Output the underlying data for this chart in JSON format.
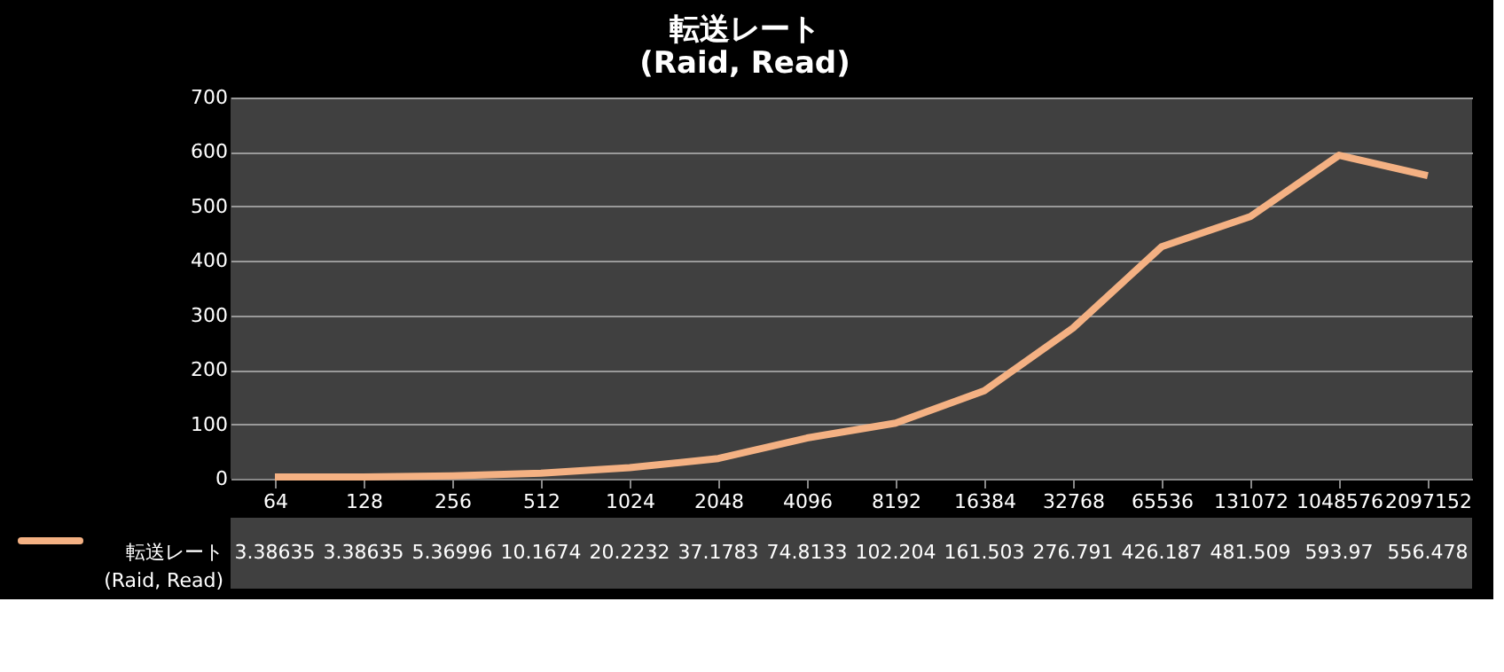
{
  "chart_data": {
    "type": "line",
    "title": "転送レート\n(Raid, Read)",
    "categories": [
      "64",
      "128",
      "256",
      "512",
      "1024",
      "2048",
      "4096",
      "8192",
      "16384",
      "32768",
      "65536",
      "131072",
      "1048576",
      "2097152"
    ],
    "series": [
      {
        "name": "転送レート\n(Raid, Read)",
        "color": "#f4b183",
        "values": [
          3.38635,
          3.38635,
          5.36996,
          10.1674,
          20.2232,
          37.1783,
          74.8133,
          102.204,
          161.503,
          276.791,
          426.187,
          481.509,
          593.97,
          556.478
        ]
      }
    ],
    "ylim": [
      0,
      700
    ],
    "yticks": [
      0,
      100,
      200,
      300,
      400,
      500,
      600,
      700
    ],
    "grid": "y",
    "data_labels": true,
    "legend": "bottom"
  }
}
